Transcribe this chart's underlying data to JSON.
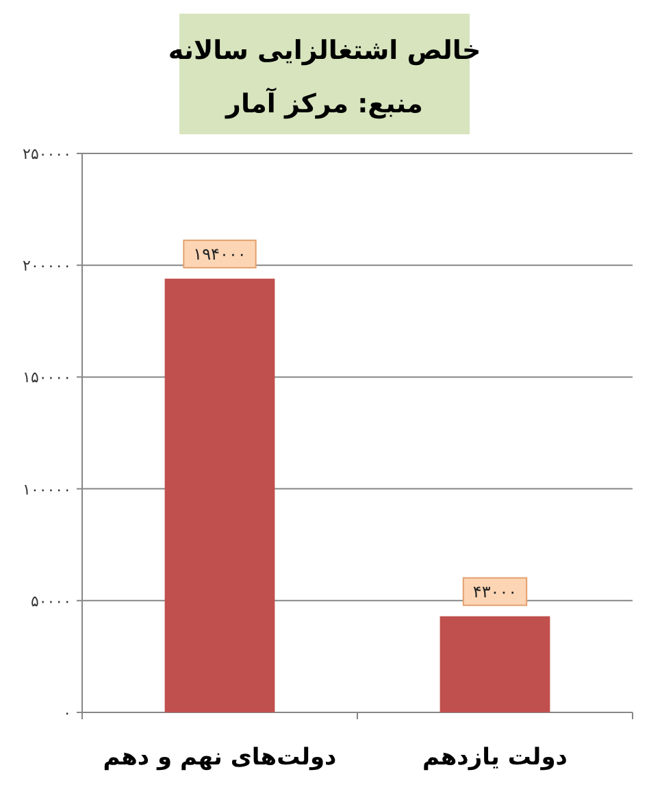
{
  "chart_data": {
    "type": "bar",
    "title": "خالص اشتغالزایی سالانه",
    "subtitle": "منبع: مرکز آمار",
    "categories": [
      "دولت‌های نهم و دهم",
      "دولت یازدهم"
    ],
    "values": [
      194000,
      43000
    ],
    "value_labels": [
      "۱۹۴۰۰۰",
      "۴۳۰۰۰"
    ],
    "color": "#c0504d",
    "ylim": [
      0,
      250000
    ],
    "yticks": [
      {
        "value": 0,
        "label": "۰"
      },
      {
        "value": 50000,
        "label": "۵۰۰۰۰"
      },
      {
        "value": 100000,
        "label": "۱۰۰۰۰۰"
      },
      {
        "value": 150000,
        "label": "۱۵۰۰۰۰"
      },
      {
        "value": 200000,
        "label": "۲۰۰۰۰۰"
      },
      {
        "value": 250000,
        "label": "۲۵۰۰۰۰"
      }
    ],
    "grid": "y"
  }
}
